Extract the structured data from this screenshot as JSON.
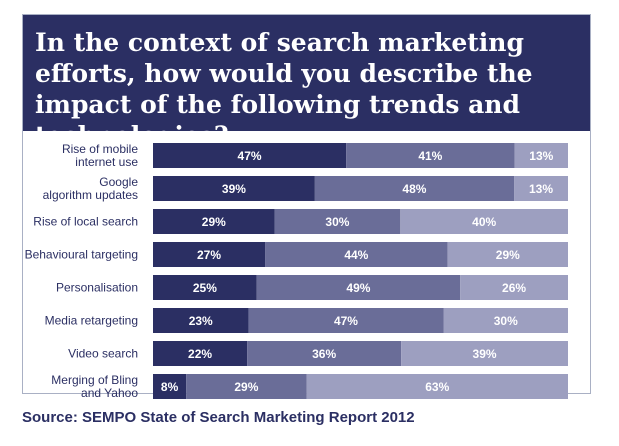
{
  "title": "In the context of search marketing efforts, how would you describe the impact of the following trends and technologies?",
  "source": "Source: SEMPO State of Search Marketing Report 2012",
  "colors": {
    "title_bg": "#2b2f63",
    "text_dark": "#2b2f63",
    "series": [
      "#2b2f63",
      "#6a6d98",
      "#9d9fc0"
    ]
  },
  "chart_data": {
    "type": "bar",
    "orientation": "horizontal",
    "stacked": true,
    "categories": [
      "Rise of mobile internet use",
      "Google algorithm updates",
      "Rise of local search",
      "Behavioural targeting",
      "Personalisation",
      "Media retargeting",
      "Video search",
      "Merging of Bling and Yahoo"
    ],
    "category_lines": [
      [
        "Rise of mobile",
        "internet use"
      ],
      [
        "Google",
        "algorithm updates"
      ],
      [
        "Rise of local search"
      ],
      [
        "Behavioural targeting"
      ],
      [
        "Personalisation"
      ],
      [
        "Media retargeting"
      ],
      [
        "Video search"
      ],
      [
        "Merging of Bling",
        "and Yahoo"
      ]
    ],
    "series": [
      {
        "values": [
          47,
          39,
          29,
          27,
          25,
          23,
          22,
          8
        ]
      },
      {
        "values": [
          41,
          48,
          30,
          44,
          49,
          47,
          36,
          29
        ]
      },
      {
        "values": [
          13,
          13,
          40,
          29,
          26,
          30,
          39,
          63
        ]
      }
    ],
    "value_suffix": "%",
    "legend": "none",
    "grid": false
  }
}
